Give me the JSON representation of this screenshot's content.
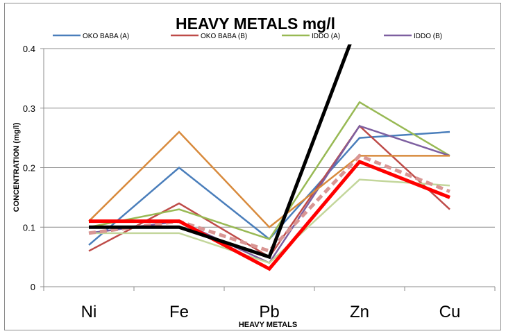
{
  "chart_data": {
    "type": "line",
    "title": "HEAVY METALS mg/l",
    "xlabel": "HEAVY METALS",
    "ylabel": "CONCENTRATION (mg/l)",
    "categories": [
      "Ni",
      "Fe",
      "Pb",
      "Zn",
      "Cu"
    ],
    "ylim": [
      0,
      0.4
    ],
    "yticks": [
      "0",
      "0.1",
      "0.2",
      "0.3",
      "0.4"
    ],
    "grid": "horizontal",
    "legend_position": "top",
    "series": [
      {
        "name": "OKO BABA (A)",
        "color": "#4a7ebb",
        "width": 2.5,
        "dash": "",
        "values": [
          0.07,
          0.2,
          0.08,
          0.25,
          0.26
        ]
      },
      {
        "name": "OKO BABA (B)",
        "color": "#be4b48",
        "width": 2.5,
        "dash": "",
        "values": [
          0.06,
          0.14,
          0.05,
          0.27,
          0.13
        ]
      },
      {
        "name": "IDDO (A)",
        "color": "#98b954",
        "width": 2.5,
        "dash": "",
        "values": [
          0.1,
          0.13,
          0.08,
          0.31,
          0.22
        ]
      },
      {
        "name": "IDDO (B)",
        "color": "#7d5fa0",
        "width": 2.5,
        "dash": "",
        "values": [
          0.09,
          0.11,
          0.04,
          0.27,
          0.22
        ]
      },
      {
        "color": "#d88a3c",
        "width": 2.5,
        "dash": "",
        "values": [
          0.11,
          0.26,
          0.1,
          0.22,
          0.22
        ]
      },
      {
        "color": "#c3d69b",
        "width": 2.5,
        "dash": "",
        "values": [
          0.09,
          0.09,
          0.04,
          0.18,
          0.17
        ]
      },
      {
        "color": "#d99694",
        "width": 5,
        "dash": "10 6",
        "values": [
          0.09,
          0.11,
          0.06,
          0.22,
          0.16
        ]
      },
      {
        "color": "#ff0000",
        "width": 5,
        "dash": "",
        "values": [
          0.11,
          0.11,
          0.03,
          0.21,
          0.15
        ]
      },
      {
        "color": "#000000",
        "width": 5,
        "dash": "",
        "values": [
          0.1,
          0.1,
          0.05,
          0.45,
          null
        ]
      }
    ]
  }
}
